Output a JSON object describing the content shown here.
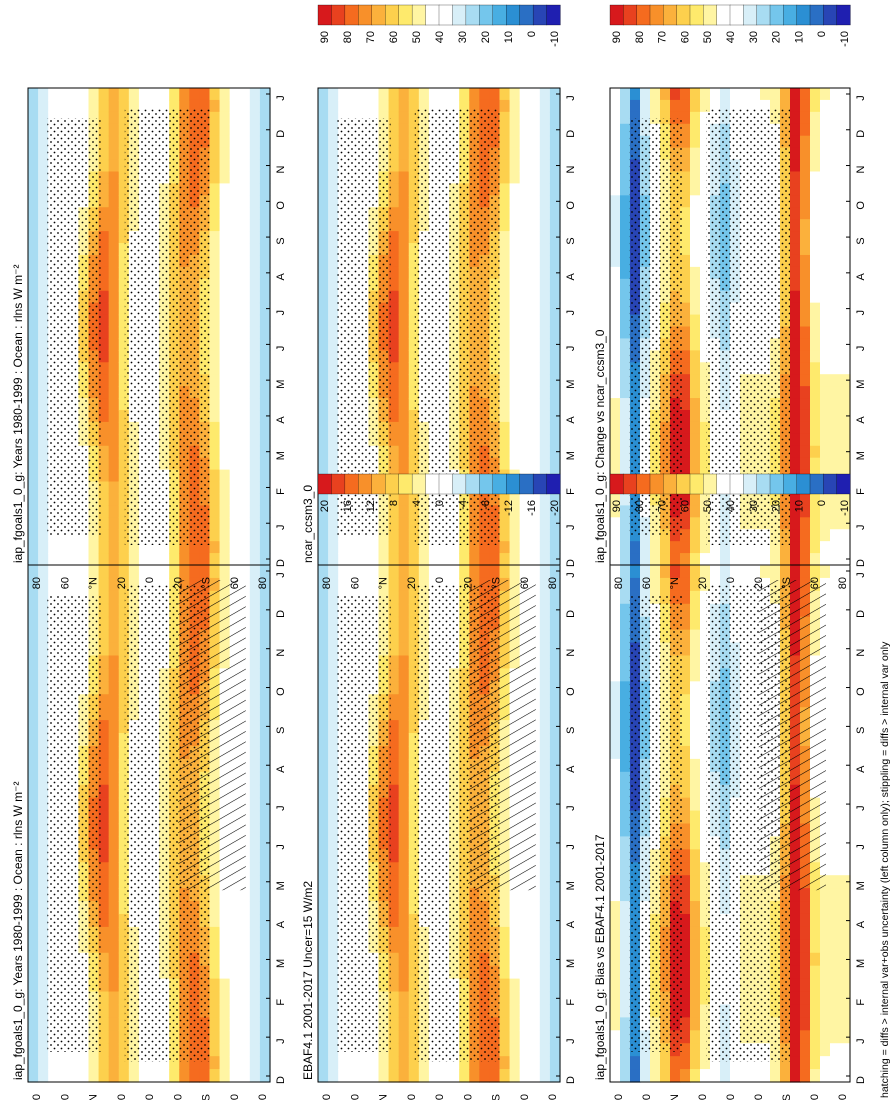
{
  "chart_data": {
    "type": "heatmap",
    "orientation": "rotated 90 degrees counter-clockwise",
    "month_ticks": [
      "D",
      "J",
      "F",
      "M",
      "A",
      "M",
      "J",
      "J",
      "A",
      "S",
      "O",
      "N",
      "D",
      "J"
    ],
    "lat_ticks": [
      "80",
      "60",
      "°N",
      "20",
      "0",
      "20",
      "°S",
      "60",
      "80"
    ],
    "footnote": "hatching = diffs > internal var+obs uncertainty (left column only); stippling = diffs > internal var only",
    "colorbars": [
      {
        "labels": [
          "90",
          "80",
          "70",
          "60",
          "50",
          "40",
          "30",
          "20",
          "10",
          "0",
          "-10"
        ],
        "colors": [
          "#d7191c",
          "#e8411f",
          "#f56b1f",
          "#f8902a",
          "#fbb13c",
          "#fdd04d",
          "#feea6c",
          "#fff5a3",
          "#ffffff",
          "#ffffff",
          "#d8eff8",
          "#a8dcf2",
          "#74c6ec",
          "#48aee2",
          "#2b8fd3",
          "#2a6fc4",
          "#2845b5",
          "#1f1fb0"
        ]
      },
      {
        "labels": [
          "20",
          "16",
          "12",
          "8",
          "4",
          "0",
          "-4",
          "-8",
          "-12",
          "-16",
          "-20"
        ],
        "colors": [
          "#d7191c",
          "#e8411f",
          "#f56b1f",
          "#f8902a",
          "#fbb13c",
          "#fdd04d",
          "#feea6c",
          "#fff5a3",
          "#ffffff",
          "#ffffff",
          "#d8eff8",
          "#a8dcf2",
          "#74c6ec",
          "#48aee2",
          "#2b8fd3",
          "#2a6fc4",
          "#2845b5",
          "#1f1fb0"
        ]
      }
    ],
    "panels": [
      {
        "title": "iap_fgoals1_0_g: Years 1980-1999 : Ocean : rlns W m⁻²",
        "kind": "abs",
        "hatch": true,
        "stipple": true,
        "cbar": 0
      },
      {
        "title": "iap_fgoals1_0_g: Years 1980-1999 : Ocean : rlns W m⁻²",
        "kind": "abs",
        "hatch": false,
        "stipple": true,
        "cbar": 0
      },
      {
        "title": "EBAF4.1 2001-2017 Uncer=15 W/m2",
        "kind": "abs",
        "hatch": true,
        "stipple": true,
        "cbar": 0
      },
      {
        "title": "ncar_ccsm3_0",
        "kind": "abs",
        "hatch": false,
        "stipple": true,
        "cbar": 0
      },
      {
        "title": "iap_fgoals1_0_g: Bias vs EBAF4.1 2001-2017",
        "kind": "diff",
        "hatch": true,
        "stipple": true,
        "cbar": 1
      },
      {
        "title": "iap_fgoals1_0_g: Change vs ncar_ccsm3_0",
        "kind": "diff",
        "hatch": false,
        "stipple": true,
        "cbar": 1
      }
    ]
  }
}
